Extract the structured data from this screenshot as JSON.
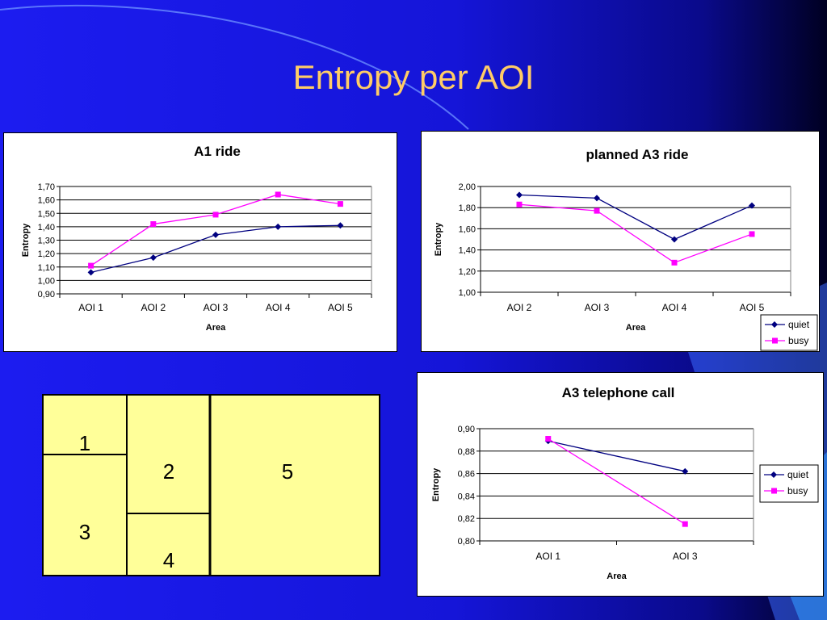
{
  "slide": {
    "title": "Entropy per AOI"
  },
  "colors": {
    "quiet": "#000080",
    "busy": "#ff00ff",
    "background": "#1a1ae6",
    "title": "#ffcc66",
    "region_fill": "#ffff99"
  },
  "chart_data": [
    {
      "type": "line",
      "title": "A1 ride",
      "xlabel": "Area",
      "ylabel": "Entropy",
      "categories": [
        "AOI 1",
        "AOI 2",
        "AOI 3",
        "AOI 4",
        "AOI 5"
      ],
      "ylim": [
        0.9,
        1.7
      ],
      "yticks": [
        "1,70",
        "1,60",
        "1,50",
        "1,40",
        "1,30",
        "1,20",
        "1,10",
        "1,00",
        "0,90"
      ],
      "tick_values": [
        1.7,
        1.6,
        1.5,
        1.4,
        1.3,
        1.2,
        1.1,
        1.0,
        0.9
      ],
      "grid": true,
      "legend": "bottom-right",
      "series": [
        {
          "name": "quiet",
          "values": [
            1.06,
            1.17,
            1.34,
            1.4,
            1.41
          ]
        },
        {
          "name": "busy",
          "values": [
            1.11,
            1.42,
            1.49,
            1.64,
            1.57
          ]
        }
      ]
    },
    {
      "type": "line",
      "title": "planned A3 ride",
      "xlabel": "Area",
      "ylabel": "Entropy",
      "categories": [
        "AOI 2",
        "AOI 3",
        "AOI 4",
        "AOI 5"
      ],
      "ylim": [
        1.0,
        2.0
      ],
      "yticks": [
        "2,00",
        "1,80",
        "1,60",
        "1,40",
        "1,20",
        "1,00"
      ],
      "tick_values": [
        2.0,
        1.8,
        1.6,
        1.4,
        1.2,
        1.0
      ],
      "grid": true,
      "legend": "bottom-right",
      "series": [
        {
          "name": "quiet",
          "values": [
            1.92,
            1.89,
            1.5,
            1.82
          ]
        },
        {
          "name": "busy",
          "values": [
            1.83,
            1.77,
            1.28,
            1.55
          ]
        }
      ]
    },
    {
      "type": "line",
      "title": "A3 telephone call",
      "xlabel": "Area",
      "ylabel": "Entropy",
      "categories": [
        "AOI 1",
        "AOI 3"
      ],
      "ylim": [
        0.8,
        0.9
      ],
      "yticks": [
        "0,90",
        "0,88",
        "0,86",
        "0,84",
        "0,82",
        "0,80"
      ],
      "tick_values": [
        0.9,
        0.88,
        0.86,
        0.84,
        0.82,
        0.8
      ],
      "grid": true,
      "legend": "right",
      "series": [
        {
          "name": "quiet",
          "values": [
            0.889,
            0.862
          ]
        },
        {
          "name": "busy",
          "values": [
            0.891,
            0.815
          ]
        }
      ]
    }
  ],
  "aoi_diagram": {
    "regions": [
      "1",
      "2",
      "3",
      "4",
      "5"
    ]
  }
}
